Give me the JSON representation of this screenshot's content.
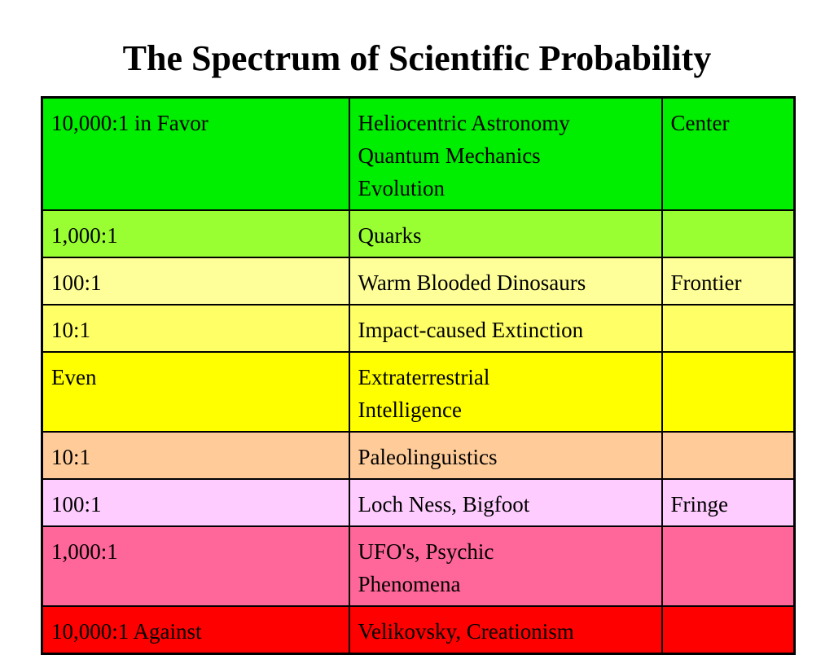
{
  "title": "The Spectrum of Scientific Probability",
  "rows": [
    {
      "odds": "10,000:1 in Favor",
      "subject": "Heliocentric Astronomy\nQuantum Mechanics\nEvolution",
      "zone": "Center",
      "color": "#00ee00"
    },
    {
      "odds": "1,000:1",
      "subject": "Quarks",
      "zone": "",
      "color": "#99ff33"
    },
    {
      "odds": "100:1",
      "subject": "Warm Blooded Dinosaurs",
      "zone": "Frontier",
      "color": "#ffff99"
    },
    {
      "odds": "10:1",
      "subject": "Impact-caused Extinction",
      "zone": "",
      "color": "#ffff66"
    },
    {
      "odds": "Even",
      "subject": "Extraterrestrial\nIntelligence",
      "zone": "",
      "color": "#ffff00"
    },
    {
      "odds": "10:1",
      "subject": "Paleolinguistics",
      "zone": "",
      "color": "#ffcc99"
    },
    {
      "odds": "100:1",
      "subject": "Loch Ness, Bigfoot",
      "zone": "Fringe",
      "color": "#ffccff"
    },
    {
      "odds": "1,000:1",
      "subject": "UFO's, Psychic\nPhenomena",
      "zone": "",
      "color": "#ff6699"
    },
    {
      "odds": "10,000:1 Against",
      "subject": "Velikovsky, Creationism",
      "zone": "",
      "color": "#ff0000"
    }
  ]
}
